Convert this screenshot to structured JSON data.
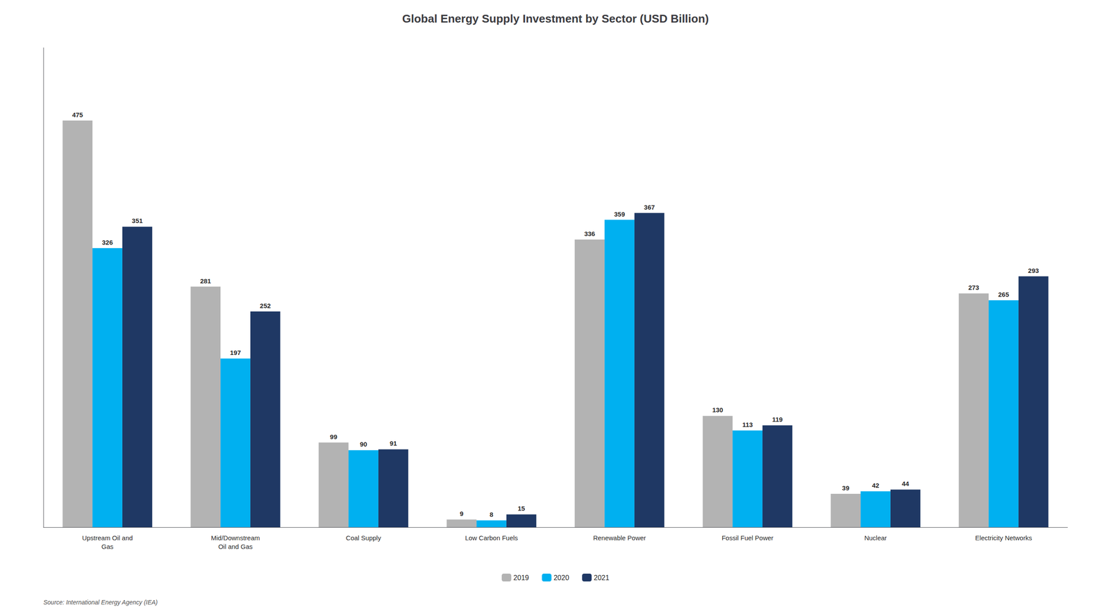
{
  "chart_data": {
    "type": "bar",
    "title": "Global Energy Supply Investment by Sector (USD Billion)",
    "categories": [
      "Upstream Oil and\nGas",
      "Mid/Downstream\nOil and Gas",
      "Coal Supply",
      "Low Carbon Fuels",
      "Renewable Power",
      "Fossil Fuel Power",
      "Nuclear",
      "Electricity Networks"
    ],
    "series": [
      {
        "name": "2019",
        "color": "#b3b3b3",
        "values": [
          475,
          281,
          99,
          9,
          336,
          130,
          39,
          273
        ]
      },
      {
        "name": "2020",
        "color": "#00b0f0",
        "values": [
          326,
          197,
          90,
          8,
          359,
          113,
          42,
          265
        ]
      },
      {
        "name": "2021",
        "color": "#1f3864",
        "values": [
          351,
          252,
          91,
          15,
          367,
          119,
          44,
          293
        ]
      }
    ],
    "ylim": [
      0,
      560
    ],
    "grid": false,
    "legend": "bottom",
    "data_labels": true,
    "tick_labels": "x",
    "annotations": [
      "Source: International Energy Agency (IEA)"
    ]
  }
}
